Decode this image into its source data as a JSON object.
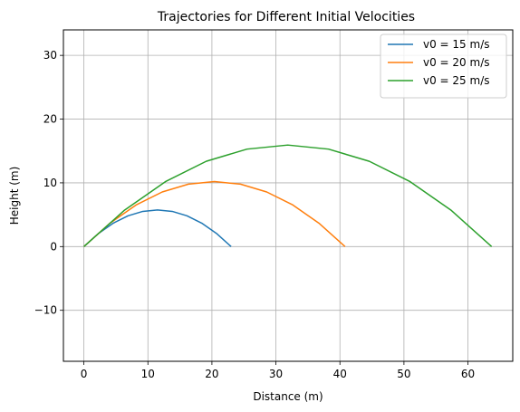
{
  "chart_data": {
    "type": "line",
    "title": "Trajectories for Different Initial Velocities",
    "xlabel": "Distance (m)",
    "ylabel": "Height (m)",
    "xlim": [
      -3.2,
      67.0
    ],
    "ylim": [
      -18.0,
      34.0
    ],
    "xticks": [
      0,
      10,
      20,
      30,
      40,
      50,
      60
    ],
    "yticks": [
      -10,
      0,
      10,
      20,
      30
    ],
    "xtick_labels": [
      "0",
      "10",
      "20",
      "30",
      "40",
      "50",
      "60"
    ],
    "ytick_labels": [
      "−10",
      "0",
      "10",
      "20",
      "30"
    ],
    "grid": true,
    "legend_position": "top-right",
    "series": [
      {
        "name": "v0 = 15 m/s",
        "color": "#1f77b4",
        "x": [
          0,
          2.3,
          4.6,
          6.9,
          9.2,
          11.5,
          13.8,
          16.1,
          18.4,
          20.7,
          23.0
        ],
        "y": [
          0,
          2.07,
          3.68,
          4.83,
          5.52,
          5.75,
          5.52,
          4.83,
          3.68,
          2.07,
          0
        ]
      },
      {
        "name": "v0 = 20 m/s",
        "color": "#ff7f0e",
        "x": [
          0,
          4.08,
          8.16,
          12.24,
          16.32,
          20.4,
          24.48,
          28.56,
          32.64,
          36.72,
          40.8
        ],
        "y": [
          0,
          3.67,
          6.53,
          8.57,
          9.79,
          10.2,
          9.79,
          8.57,
          6.53,
          3.67,
          0
        ]
      },
      {
        "name": "v0 = 25 m/s",
        "color": "#2ca02c",
        "x": [
          0,
          6.37,
          12.74,
          19.11,
          25.48,
          31.85,
          38.22,
          44.59,
          50.96,
          57.33,
          63.7
        ],
        "y": [
          0,
          5.73,
          10.19,
          13.38,
          15.29,
          15.93,
          15.29,
          13.38,
          10.19,
          5.73,
          0
        ]
      }
    ]
  }
}
